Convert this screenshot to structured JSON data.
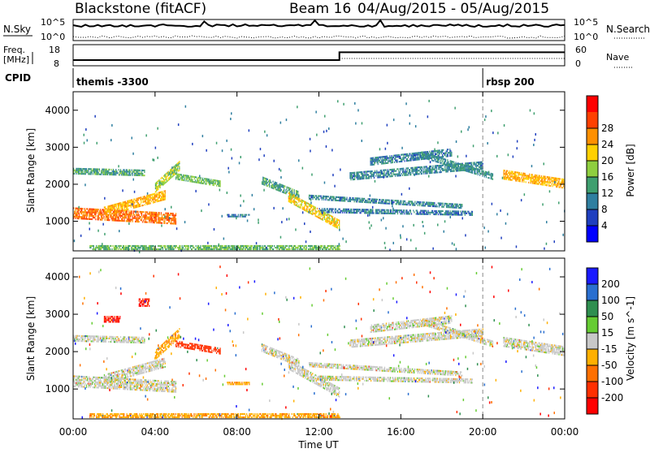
{
  "header": {
    "radar": "Blackstone (fitACF)",
    "beam": "Beam 16",
    "date_range": "04/Aug/2015 - 05/Aug/2015"
  },
  "status_panels": {
    "nsky_label": "N.Sky",
    "nsearch_label": "N.Search",
    "noise_ticks": [
      "10^5",
      "10^0"
    ],
    "freq_label": "Freq.",
    "freq_unit": "[MHz]",
    "freq_ticks": [
      "18",
      "8"
    ],
    "nave_label": "Nave",
    "nave_ticks": [
      "60",
      "0"
    ],
    "cpid_label": "CPID",
    "cpid_segments": [
      {
        "name": "themis -3300",
        "start_hour": 0
      },
      {
        "name": "rbsp 200",
        "start_hour": 20
      }
    ],
    "freq_step_hour": 13,
    "freq_low": 10.5,
    "freq_high": 14.5
  },
  "chart_data": [
    {
      "type": "heatmap",
      "title": "Power",
      "xlabel": "",
      "ylabel": "Slant Range [km]",
      "x_range_hours": [
        0,
        24
      ],
      "ylim": [
        200,
        4500
      ],
      "x_ticks": [
        "00:00",
        "04:00",
        "08:00",
        "12:00",
        "16:00",
        "20:00",
        "00:00"
      ],
      "y_ticks": [
        1000,
        2000,
        3000,
        4000
      ],
      "colorbar": {
        "label": "Power [dB]",
        "ticks": [
          "4",
          "8",
          "12",
          "16",
          "20",
          "24",
          "28"
        ],
        "levels": [
          "#0000ff",
          "#1f3fbf",
          "#2f7fa0",
          "#3f9f6f",
          "#8fcf3f",
          "#ffd000",
          "#ff9000",
          "#ff4000",
          "#ff0000"
        ]
      },
      "echo_bands": [
        {
          "t0": 0.0,
          "t1": 5.0,
          "r0": 1200,
          "r1": 1050,
          "w": 280,
          "power": 26
        },
        {
          "t0": 1.5,
          "t1": 4.5,
          "r0": 1250,
          "r1": 1700,
          "w": 250,
          "power": 22
        },
        {
          "t0": 4.0,
          "t1": 5.2,
          "r0": 1900,
          "r1": 2500,
          "w": 250,
          "power": 16
        },
        {
          "t0": 0.0,
          "t1": 3.5,
          "r0": 2350,
          "r1": 2300,
          "w": 170,
          "power": 12
        },
        {
          "t0": 5.0,
          "t1": 7.2,
          "r0": 2200,
          "r1": 2000,
          "w": 160,
          "power": 14
        },
        {
          "t0": 9.2,
          "t1": 11.0,
          "r0": 2100,
          "r1": 1700,
          "w": 220,
          "power": 12
        },
        {
          "t0": 10.5,
          "t1": 13.0,
          "r0": 1650,
          "r1": 900,
          "w": 270,
          "power": 20
        },
        {
          "t0": 11.5,
          "t1": 19.0,
          "r0": 1650,
          "r1": 1400,
          "w": 130,
          "power": 9
        },
        {
          "t0": 12.0,
          "t1": 19.5,
          "r0": 1280,
          "r1": 1200,
          "w": 110,
          "power": 8
        },
        {
          "t0": 13.5,
          "t1": 20.0,
          "r0": 2200,
          "r1": 2500,
          "w": 200,
          "power": 9
        },
        {
          "t0": 14.5,
          "t1": 18.5,
          "r0": 2600,
          "r1": 2850,
          "w": 200,
          "power": 8
        },
        {
          "t0": 17.0,
          "t1": 20.5,
          "r0": 2800,
          "r1": 2200,
          "w": 180,
          "power": 10
        },
        {
          "t0": 21.0,
          "t1": 24.0,
          "r0": 2250,
          "r1": 2000,
          "w": 250,
          "power": 22
        },
        {
          "t0": 0.8,
          "t1": 13.0,
          "r0": 280,
          "r1": 280,
          "w": 120,
          "power": 14
        },
        {
          "t0": 7.5,
          "t1": 8.6,
          "r0": 1150,
          "r1": 1150,
          "w": 90,
          "power": 8
        }
      ]
    },
    {
      "type": "heatmap",
      "title": "Velocity",
      "xlabel": "Time UT",
      "ylabel": "Slant Range [km]",
      "x_range_hours": [
        0,
        24
      ],
      "ylim": [
        200,
        4500
      ],
      "x_ticks": [
        "00:00",
        "04:00",
        "08:00",
        "12:00",
        "16:00",
        "20:00",
        "00:00"
      ],
      "y_ticks": [
        1000,
        2000,
        3000,
        4000
      ],
      "colorbar": {
        "label": "Velocity [m s^-1]",
        "ticks": [
          "200",
          "100",
          "50",
          "15",
          "-15",
          "-50",
          "-100",
          "-200"
        ],
        "levels": [
          "#1a1aff",
          "#2a6fd0",
          "#2f8f50",
          "#66cc33",
          "#c8c8c8",
          "#ffb000",
          "#ff7000",
          "#ff3000",
          "#ff0000"
        ]
      },
      "echo_bands": [
        {
          "t0": 0.0,
          "t1": 5.0,
          "r0": 1200,
          "r1": 1050,
          "w": 300,
          "vel": 0
        },
        {
          "t0": 1.5,
          "t1": 4.5,
          "r0": 1250,
          "r1": 1700,
          "w": 250,
          "vel": 0
        },
        {
          "t0": 4.0,
          "t1": 5.2,
          "r0": 1900,
          "r1": 2500,
          "w": 250,
          "vel": -40
        },
        {
          "t0": 0.0,
          "t1": 3.5,
          "r0": 2350,
          "r1": 2300,
          "w": 170,
          "vel": 0
        },
        {
          "t0": 5.0,
          "t1": 7.2,
          "r0": 2200,
          "r1": 2000,
          "w": 160,
          "vel": -120
        },
        {
          "t0": 7.5,
          "t1": 8.6,
          "r0": 1150,
          "r1": 1150,
          "w": 90,
          "vel": -40
        },
        {
          "t0": 9.2,
          "t1": 11.0,
          "r0": 2100,
          "r1": 1700,
          "w": 220,
          "vel": 0
        },
        {
          "t0": 10.5,
          "t1": 13.0,
          "r0": 1650,
          "r1": 900,
          "w": 270,
          "vel": 0
        },
        {
          "t0": 11.5,
          "t1": 19.0,
          "r0": 1650,
          "r1": 1400,
          "w": 130,
          "vel": 0
        },
        {
          "t0": 12.0,
          "t1": 19.5,
          "r0": 1280,
          "r1": 1200,
          "w": 110,
          "vel": 0
        },
        {
          "t0": 13.5,
          "t1": 20.0,
          "r0": 2200,
          "r1": 2500,
          "w": 200,
          "vel": 0
        },
        {
          "t0": 14.5,
          "t1": 18.5,
          "r0": 2600,
          "r1": 2850,
          "w": 200,
          "vel": 0
        },
        {
          "t0": 17.0,
          "t1": 20.5,
          "r0": 2800,
          "r1": 2200,
          "w": 180,
          "vel": 0
        },
        {
          "t0": 21.0,
          "t1": 24.0,
          "r0": 2250,
          "r1": 2000,
          "w": 250,
          "vel": 0
        },
        {
          "t0": 0.8,
          "t1": 13.0,
          "r0": 280,
          "r1": 280,
          "w": 120,
          "vel": -40
        },
        {
          "t0": 1.5,
          "t1": 2.3,
          "r0": 2850,
          "r1": 2850,
          "w": 150,
          "vel": -200
        },
        {
          "t0": 3.2,
          "t1": 3.7,
          "r0": 3300,
          "r1": 3300,
          "w": 200,
          "vel": -200
        }
      ]
    }
  ]
}
